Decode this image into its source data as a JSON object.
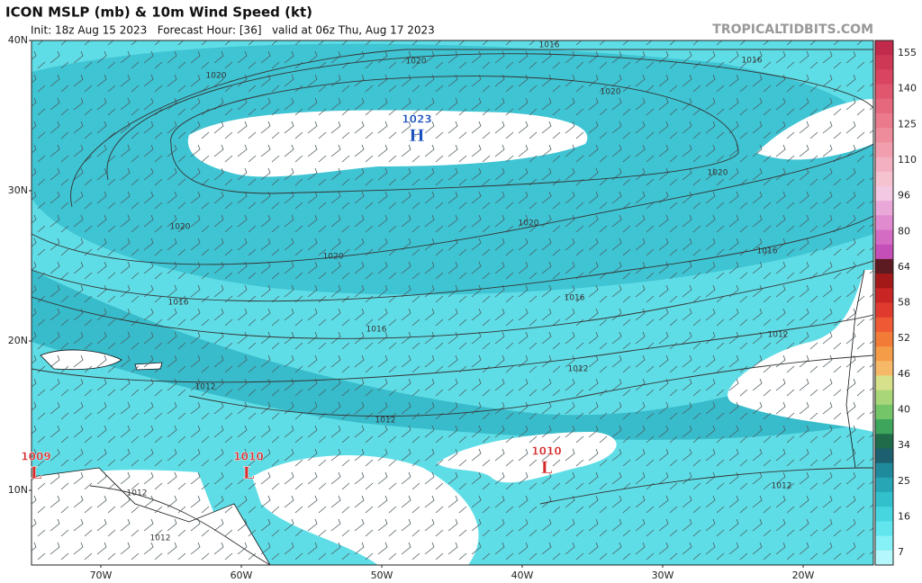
{
  "header": {
    "title": "ICON MSLP (mb) & 10m Wind Speed (kt)",
    "subtitle": "Init: 18z Aug 15 2023   Forecast Hour: [36]   valid at 06z Thu, Aug 17 2023",
    "source": "TROPICALTIDBITS.COM"
  },
  "map": {
    "lat_labels": [
      "40N",
      "30N",
      "20N",
      "10N"
    ],
    "lon_labels": [
      "70W",
      "60W",
      "50W",
      "40W",
      "30W",
      "20W"
    ],
    "centers": [
      {
        "value": "1023",
        "symbol": "H"
      },
      {
        "value": "1009",
        "symbol": "L"
      },
      {
        "value": "1010",
        "symbol": "L"
      },
      {
        "value": "1010",
        "symbol": "L"
      }
    ],
    "isobar_labels": [
      "1016",
      "1016",
      "1020",
      "1020",
      "1020",
      "1020",
      "1020",
      "1020",
      "1020",
      "1016",
      "1016",
      "1016",
      "1016",
      "1012",
      "1012",
      "1012",
      "1012",
      "1012",
      "1012",
      "1012"
    ]
  },
  "colorbar": {
    "labels": [
      "155",
      "140",
      "125",
      "110",
      "96",
      "80",
      "64",
      "58",
      "52",
      "46",
      "40",
      "34",
      "25",
      "16",
      "7"
    ]
  }
}
